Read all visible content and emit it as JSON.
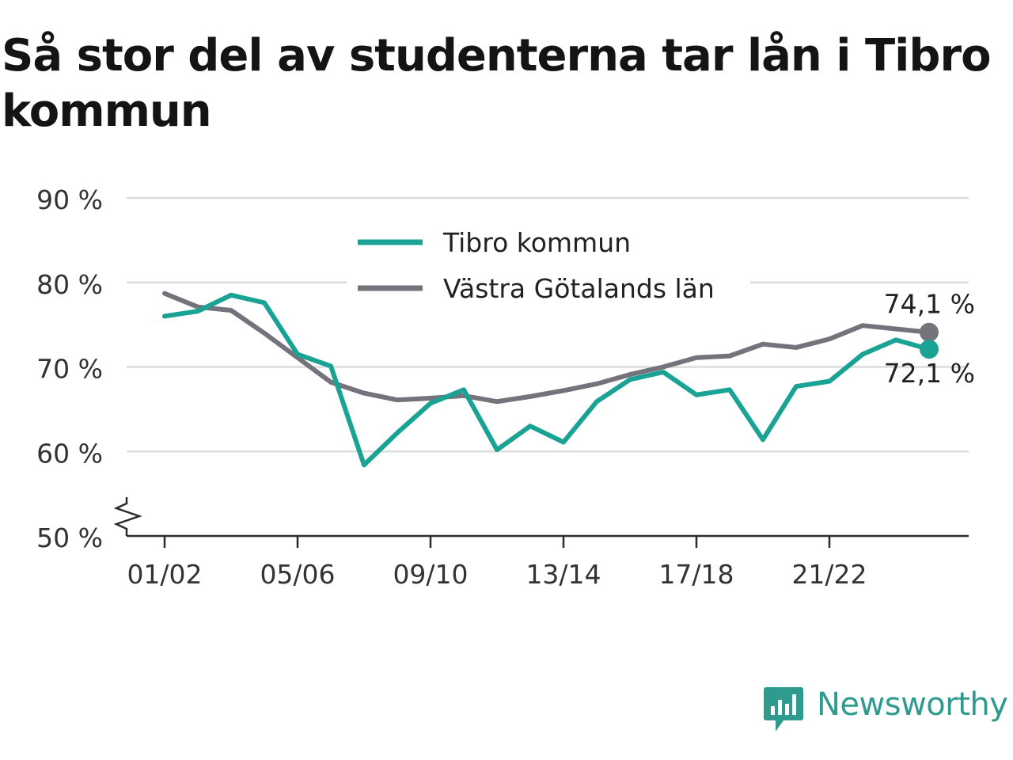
{
  "title": "Så stor del av studenterna tar lån i Tibro kommun",
  "brand": {
    "name": "Newsworthy",
    "color": "#2e9b8e",
    "icon": "newsworthy-chart-bubble-icon"
  },
  "chart_data": {
    "type": "line",
    "title": "Så stor del av studenterna tar lån i Tibro kommun",
    "xlabel": "",
    "ylabel": "",
    "categories": [
      "01/02",
      "02/03",
      "03/04",
      "04/05",
      "05/06",
      "06/07",
      "07/08",
      "08/09",
      "09/10",
      "10/11",
      "11/12",
      "12/13",
      "13/14",
      "14/15",
      "15/16",
      "16/17",
      "17/18",
      "18/19",
      "19/20",
      "20/21",
      "21/22",
      "22/23",
      "23/24",
      "24/25"
    ],
    "x_tick_labels": [
      "01/02",
      "05/06",
      "09/10",
      "13/14",
      "17/18",
      "21/22"
    ],
    "y_ticks": [
      50,
      60,
      70,
      80,
      90
    ],
    "y_tick_labels": [
      "50 %",
      "60 %",
      "70 %",
      "80 %",
      "90 %"
    ],
    "ylim": [
      50,
      90
    ],
    "y_axis_break": true,
    "grid": true,
    "legend_position": "top-center",
    "series": [
      {
        "name": "Tibro kommun",
        "color": "#1aa394",
        "values": [
          76.0,
          76.6,
          78.5,
          77.6,
          71.5,
          70.1,
          58.4,
          62.2,
          65.7,
          67.3,
          60.2,
          63.0,
          61.1,
          65.9,
          68.5,
          69.4,
          66.7,
          67.3,
          61.4,
          67.7,
          68.3,
          71.5,
          73.2,
          72.1
        ],
        "end_label": "72,1 %"
      },
      {
        "name": "Västra Götalands län",
        "color": "#74727b",
        "values": [
          78.7,
          77.1,
          76.7,
          74.0,
          71.1,
          68.2,
          66.9,
          66.1,
          66.3,
          66.6,
          65.9,
          66.5,
          67.2,
          68.0,
          69.1,
          70.0,
          71.1,
          71.3,
          72.7,
          72.3,
          73.3,
          74.9,
          74.5,
          74.1
        ],
        "end_label": "74,1 %"
      }
    ]
  }
}
